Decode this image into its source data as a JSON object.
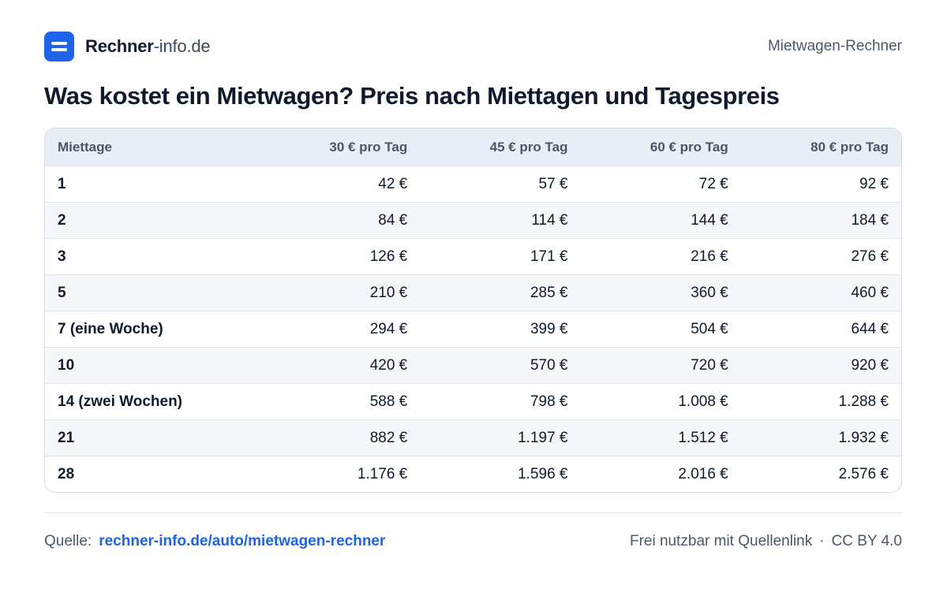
{
  "header": {
    "brand_bold": "Rechner",
    "brand_light": "-info.de",
    "right_label": "Mietwagen-Rechner"
  },
  "title": "Was kostet ein Mietwagen? Preis nach Miettagen und Tagespreis",
  "table": {
    "columns": [
      "Miettage",
      "30 € pro Tag",
      "45 € pro Tag",
      "60 € pro Tag",
      "80 € pro Tag"
    ],
    "rows": [
      [
        "1",
        "42 €",
        "57 €",
        "72 €",
        "92 €"
      ],
      [
        "2",
        "84 €",
        "114 €",
        "144 €",
        "184 €"
      ],
      [
        "3",
        "126 €",
        "171 €",
        "216 €",
        "276 €"
      ],
      [
        "5",
        "210 €",
        "285 €",
        "360 €",
        "460 €"
      ],
      [
        "7 (eine Woche)",
        "294 €",
        "399 €",
        "504 €",
        "644 €"
      ],
      [
        "10",
        "420 €",
        "570 €",
        "720 €",
        "920 €"
      ],
      [
        "14 (zwei Wochen)",
        "588 €",
        "798 €",
        "1.008 €",
        "1.288 €"
      ],
      [
        "21",
        "882 €",
        "1.197 €",
        "1.512 €",
        "1.932 €"
      ],
      [
        "28",
        "1.176 €",
        "1.596 €",
        "2.016 €",
        "2.576 €"
      ]
    ]
  },
  "footer": {
    "source_label": "Quelle:",
    "source_link": "rechner-info.de/auto/mietwagen-rechner",
    "license_text": "Frei nutzbar mit Quellenlink",
    "separator": "·",
    "license_name": "CC BY 4.0"
  },
  "colors": {
    "accent": "#1e63e9",
    "header_bg": "#e8eef6",
    "zebra_bg": "#f5f7fb"
  }
}
